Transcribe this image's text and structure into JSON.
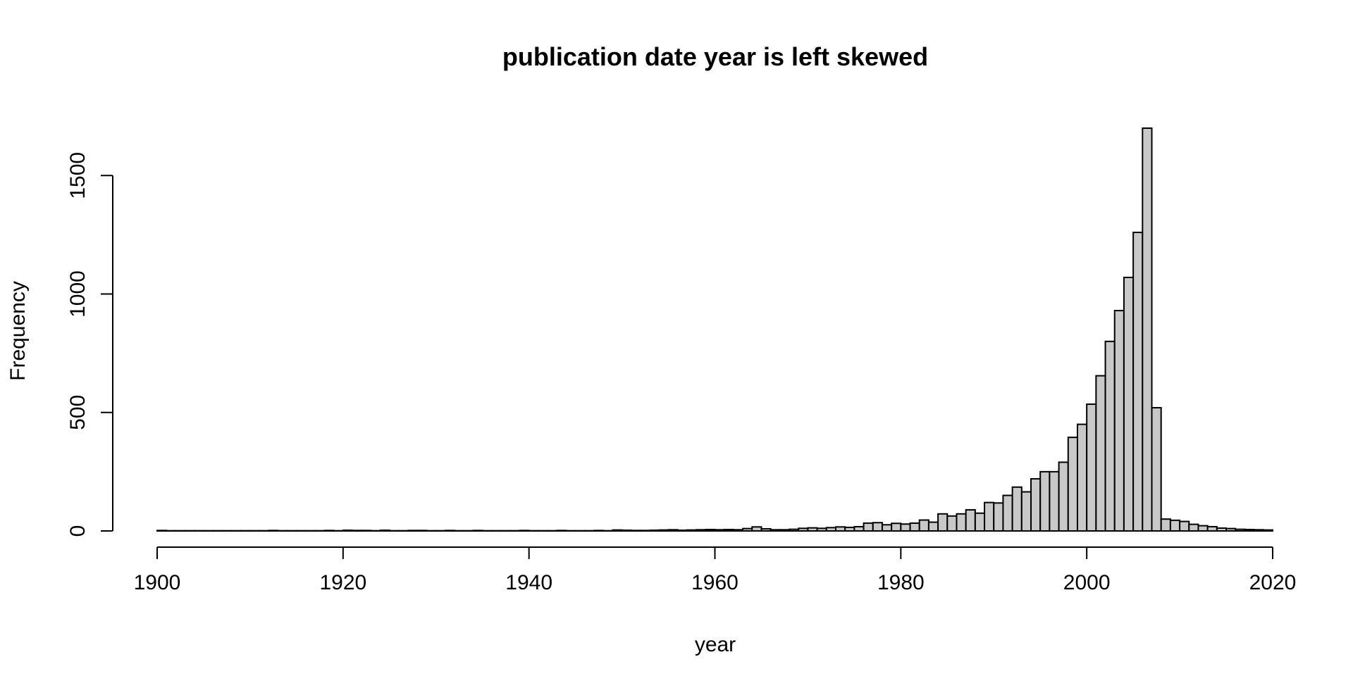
{
  "chart_data": {
    "type": "bar",
    "title": "publication date year is left skewed",
    "xlabel": "year",
    "ylabel": "Frequency",
    "xlim": [
      1900,
      2020
    ],
    "ylim": [
      0,
      1700
    ],
    "x_ticks": [
      1900,
      1920,
      1940,
      1960,
      1980,
      2000,
      2020
    ],
    "y_ticks": [
      0,
      500,
      1000,
      1500
    ],
    "bin_width": 1,
    "bar_fill": "#c8c8c8",
    "bar_stroke": "#000000",
    "grid": false,
    "bins_start": 1900,
    "values": [
      2,
      1,
      1,
      1,
      1,
      1,
      1,
      1,
      1,
      1,
      1,
      1,
      2,
      1,
      1,
      1,
      1,
      1,
      2,
      1,
      3,
      2,
      2,
      1,
      3,
      1,
      1,
      2,
      2,
      1,
      1,
      2,
      1,
      1,
      2,
      1,
      1,
      1,
      1,
      2,
      1,
      1,
      1,
      2,
      1,
      1,
      1,
      2,
      1,
      4,
      3,
      2,
      2,
      3,
      4,
      5,
      3,
      4,
      5,
      6,
      5,
      6,
      5,
      10,
      17,
      9,
      5,
      5,
      7,
      11,
      13,
      11,
      14,
      17,
      15,
      18,
      33,
      35,
      26,
      32,
      29,
      33,
      46,
      37,
      72,
      63,
      72,
      89,
      75,
      120,
      118,
      150,
      185,
      165,
      220,
      250,
      250,
      290,
      395,
      450,
      535,
      655,
      800,
      930,
      1070,
      1260,
      1700,
      520,
      50,
      45,
      40,
      28,
      22,
      18,
      12,
      10,
      7,
      6,
      5,
      4
    ]
  }
}
